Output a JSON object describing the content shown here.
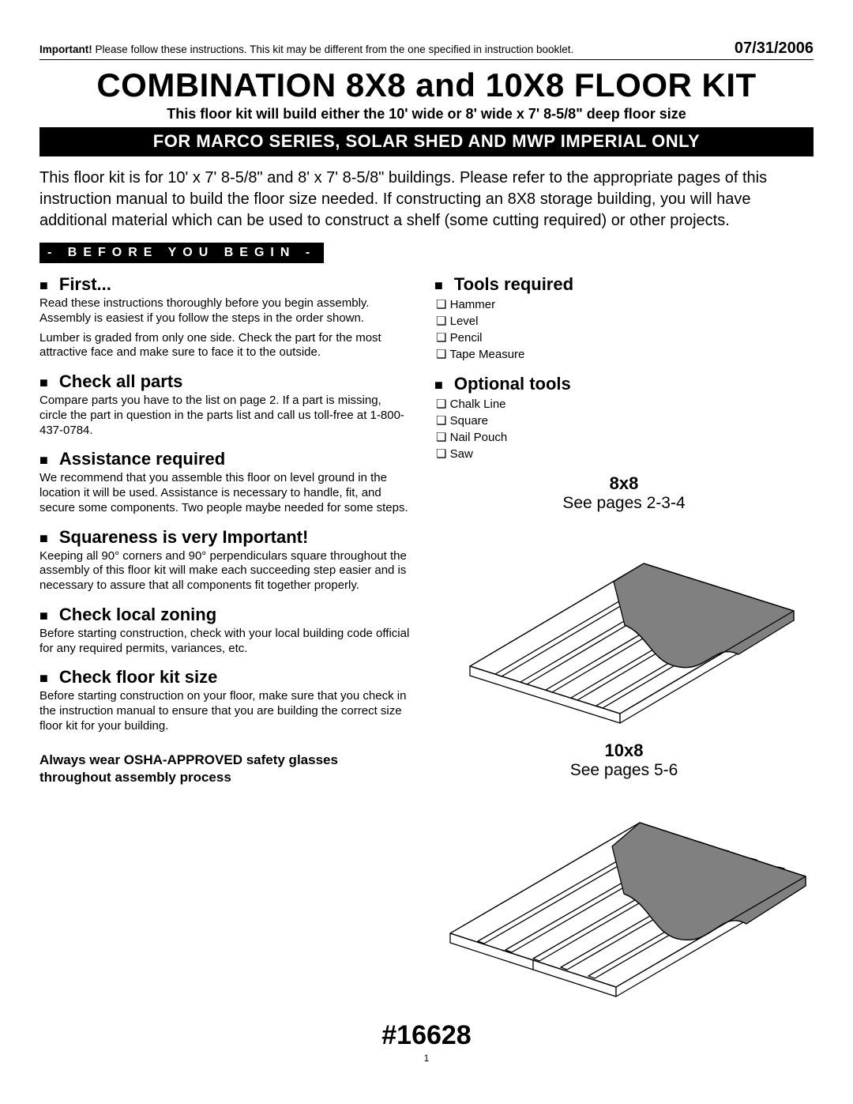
{
  "top_warning_bold": "Important!",
  "top_warning": " Please follow these instructions.  This kit may be different from the one specified in instruction booklet.",
  "date": "07/31/2006",
  "title": "COMBINATION 8X8 and 10X8 FLOOR KIT",
  "subtitle": "This floor kit will build either the 10' wide or 8' wide x 7' 8-5/8\" deep floor size",
  "bar": "FOR MARCO SERIES, SOLAR SHED AND MWP IMPERIAL ONLY",
  "intro": "This floor kit is for 10' x 7' 8-5/8\" and 8' x 7' 8-5/8\" buildings.  Please refer to the appropriate pages of this instruction manual to build the floor size needed.  If constructing an 8X8 storage building, you will have additional material which can be used to construct a shelf (some cutting required) or other projects.",
  "before_you_begin": "- BEFORE YOU BEGIN -",
  "left_sections": [
    {
      "h": "First...",
      "p": [
        "Read these instructions thoroughly before you begin assembly.  Assembly is easiest if you follow the steps in the order shown.",
        "Lumber is graded from only one side. Check the part for the most attractive face and make sure to face it to the outside."
      ]
    },
    {
      "h": "Check all parts",
      "p": [
        "Compare parts you have to the list on page 2. If a part is missing, circle the part in question in the parts list and call us toll-free at 1-800-437-0784."
      ]
    },
    {
      "h": "Assistance required",
      "p": [
        "We recommend that you assemble this floor on level ground in the location it will be used. Assistance is necessary to handle, fit, and secure some components. Two people maybe needed for some steps."
      ]
    },
    {
      "h": "Squareness is very Important!",
      "p": [
        "Keeping all 90° corners and 90° perpendiculars square throughout the assembly of this floor kit will make each succeeding step easier and is necessary to assure that all components fit together properly."
      ]
    },
    {
      "h": "Check local zoning",
      "p": [
        "Before starting construction, check with your local building code official for any required permits, variances, etc."
      ]
    },
    {
      "h": "Check floor kit size",
      "p": [
        "Before starting construction on your floor, make sure that you check in the instruction manual to ensure that you are building the correct size floor kit for your building."
      ]
    }
  ],
  "safety": "Always wear OSHA-APPROVED safety glasses throughout assembly process",
  "tools_required_h": "Tools required",
  "tools_required": [
    "Hammer",
    "Level",
    "Pencil",
    "Tape Measure"
  ],
  "optional_tools_h": "Optional tools",
  "optional_tools": [
    "Chalk Line",
    "Square",
    "Nail Pouch",
    "Saw"
  ],
  "fig1_title": "8x8",
  "fig1_sub": "See pages 2-3-4",
  "fig2_title": "10x8",
  "fig2_sub": "See pages 5-6",
  "part_number": "#16628",
  "page_number": "1",
  "diagram": {
    "stroke": "#000000",
    "stroke_width": 1.3,
    "deck_fill": "#808080",
    "frame_fill": "#ffffff"
  }
}
